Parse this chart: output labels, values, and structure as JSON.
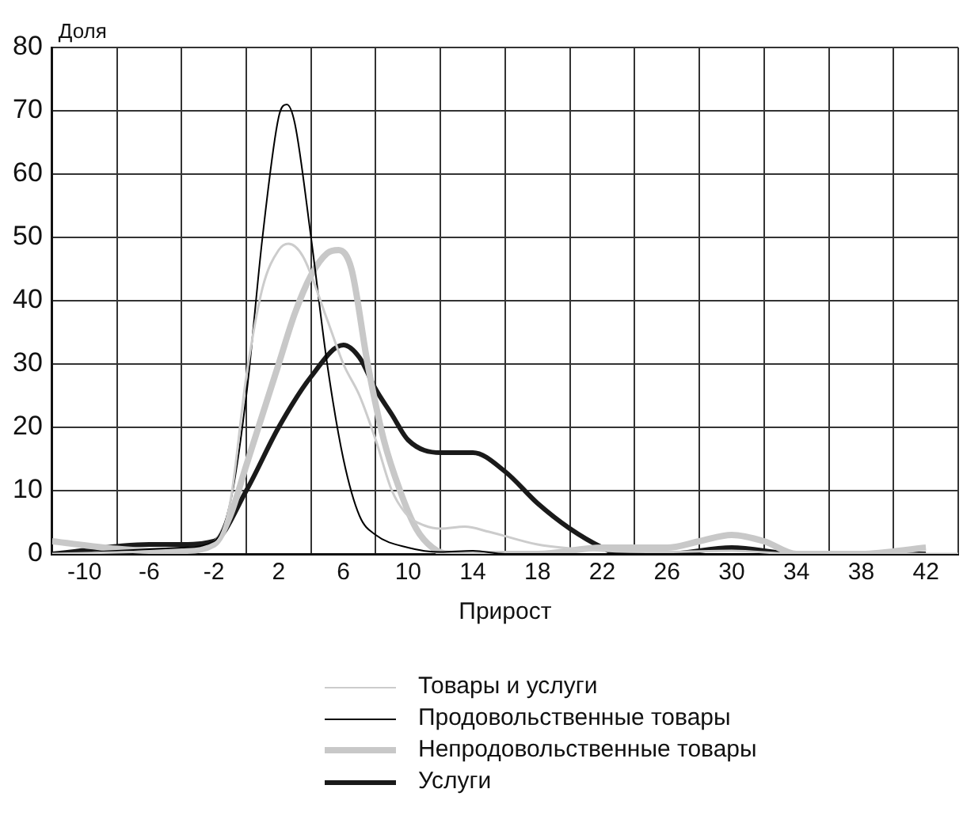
{
  "chart_data": {
    "type": "line",
    "xlabel": "Прирост",
    "ylabel": "Доля",
    "xlim": [
      -12,
      44
    ],
    "ylim": [
      0,
      80
    ],
    "xticks": [
      -10,
      {
        "value": -8,
        "label": null
      },
      -6,
      {
        "value": -4,
        "label": null
      },
      -2,
      {
        "value": 0,
        "label": null
      },
      2,
      {
        "value": 4,
        "label": null
      },
      6,
      {
        "value": 8,
        "label": null
      },
      10,
      {
        "value": 12,
        "label": null
      },
      14,
      {
        "value": 16,
        "label": null
      },
      18,
      {
        "value": 20,
        "label": null
      },
      22,
      {
        "value": 24,
        "label": null
      },
      26,
      {
        "value": 28,
        "label": null
      },
      30,
      {
        "value": 32,
        "label": null
      },
      34,
      {
        "value": 36,
        "label": null
      },
      38,
      {
        "value": 40,
        "label": null
      },
      42,
      {
        "value": 44,
        "label": null
      }
    ],
    "yticks": [
      0,
      10,
      20,
      30,
      40,
      50,
      60,
      70,
      80
    ],
    "grid": true,
    "legend": "bottom",
    "marker": "none",
    "line_style": "solid",
    "series": [
      {
        "name": "Товары и услуги",
        "color": "#cccccc",
        "x": [
          -12,
          -4,
          -2,
          -1,
          0,
          1,
          2,
          2.6,
          3.5,
          5,
          6,
          7,
          8,
          9,
          10,
          11,
          12,
          13.5,
          15,
          18,
          22,
          26,
          30,
          34,
          44
        ],
        "values": [
          0,
          0.5,
          1.5,
          8,
          28,
          42,
          48,
          49,
          47,
          37,
          30,
          25,
          18,
          10,
          6,
          4.5,
          4,
          4.3,
          3.5,
          1.5,
          0.5,
          0.3,
          0.5,
          0,
          0
        ]
      },
      {
        "name": "Продовольственные товары",
        "color": "#000000",
        "x": [
          -12,
          -8,
          -4,
          -2,
          -1,
          0,
          1,
          2,
          2.5,
          3,
          4,
          5,
          6,
          7,
          8,
          10,
          12,
          14,
          16,
          44
        ],
        "values": [
          0,
          0.5,
          1,
          2,
          8,
          25,
          50,
          69,
          71,
          68,
          50,
          30,
          15,
          6,
          3,
          1,
          0.3,
          0.5,
          0,
          0
        ]
      },
      {
        "name": "Непродовольственные товары",
        "color": "#c8c8c8",
        "x": [
          -12,
          -8,
          -6,
          -4,
          -2,
          -1,
          0,
          1,
          2,
          3,
          4,
          5,
          5.7,
          6.5,
          7.5,
          8.5,
          9.5,
          10.5,
          11.5,
          12.5,
          18,
          22,
          26,
          28,
          30,
          32,
          34,
          38,
          42
        ],
        "values": [
          2,
          0.8,
          0.5,
          0.5,
          1.5,
          6,
          14,
          22,
          30,
          38,
          44,
          47.5,
          48,
          45,
          30,
          18,
          10,
          4,
          1,
          0,
          0,
          1,
          1,
          2,
          3,
          2,
          0,
          0,
          1
        ]
      },
      {
        "name": "Услуги",
        "color": "#1a1a1a",
        "x": [
          -12,
          -6,
          -4,
          -2,
          0,
          2,
          4,
          6,
          7,
          8,
          9,
          10,
          12,
          14,
          16,
          18,
          20,
          22,
          23,
          26,
          30,
          34,
          38,
          42
        ],
        "values": [
          0,
          1.5,
          1.5,
          2,
          10,
          20,
          28,
          33,
          31,
          26,
          22,
          18,
          16,
          16,
          13,
          8,
          4,
          1,
          0,
          0,
          1,
          0,
          0,
          0
        ]
      }
    ]
  }
}
